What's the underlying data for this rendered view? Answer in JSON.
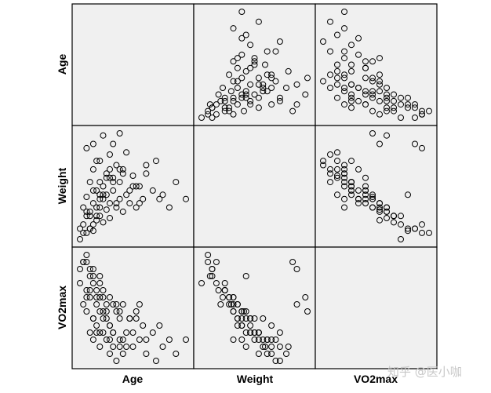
{
  "chart_data": {
    "type": "scatter-matrix",
    "variables": [
      "Age",
      "Weight",
      "VO2max"
    ],
    "diagonal": "empty",
    "marker": "open-circle",
    "panel_background": "#f0f0f0",
    "axes_ticks": "none",
    "observations": {
      "Age": [
        18,
        19,
        19,
        20,
        20,
        20,
        21,
        21,
        21,
        22,
        22,
        22,
        23,
        23,
        23,
        24,
        24,
        24,
        25,
        25,
        25,
        26,
        26,
        27,
        27,
        27,
        28,
        28,
        29,
        29,
        30,
        30,
        31,
        31,
        32,
        33,
        34,
        35,
        36,
        37,
        38,
        40,
        41,
        43,
        45,
        47,
        20,
        22,
        25,
        28,
        30,
        24,
        26,
        21,
        23,
        19,
        27,
        29,
        32,
        35,
        38,
        42,
        22,
        24,
        26,
        28,
        31,
        33,
        36,
        21,
        23,
        25,
        20,
        18,
        22,
        24,
        27,
        30,
        34,
        50
      ],
      "Weight": [
        55,
        62,
        70,
        58,
        75,
        66,
        60,
        82,
        68,
        72,
        59,
        88,
        64,
        78,
        70,
        66,
        92,
        74,
        80,
        63,
        76,
        86,
        69,
        72,
        95,
        65,
        78,
        84,
        70,
        90,
        74,
        82,
        68,
        88,
        76,
        72,
        85,
        70,
        80,
        74,
        86,
        78,
        92,
        76,
        70,
        82,
        98,
        100,
        104,
        100,
        105,
        76,
        84,
        66,
        92,
        58,
        88,
        72,
        96,
        80,
        90,
        74,
        62,
        70,
        76,
        82,
        86,
        78,
        72,
        60,
        66,
        74,
        68,
        60,
        78,
        82,
        84,
        88,
        80,
        74
      ],
      "VO2max": [
        44,
        50,
        38,
        52,
        36,
        42,
        48,
        30,
        40,
        34,
        46,
        28,
        38,
        32,
        40,
        44,
        26,
        36,
        30,
        42,
        34,
        28,
        38,
        32,
        24,
        40,
        30,
        26,
        36,
        22,
        34,
        28,
        38,
        24,
        30,
        34,
        26,
        36,
        28,
        32,
        24,
        30,
        22,
        26,
        28,
        24,
        50,
        48,
        40,
        38,
        36,
        46,
        34,
        42,
        30,
        50,
        32,
        38,
        26,
        34,
        28,
        32,
        44,
        40,
        36,
        30,
        28,
        34,
        38,
        46,
        42,
        36,
        40,
        48,
        34,
        30,
        28,
        26,
        30,
        28
      ]
    }
  },
  "labels": {
    "row": [
      "Age",
      "Weight",
      "VO2max"
    ],
    "col": [
      "Age",
      "Weight",
      "VO2max"
    ]
  },
  "watermark": "知乎 @医小咖"
}
